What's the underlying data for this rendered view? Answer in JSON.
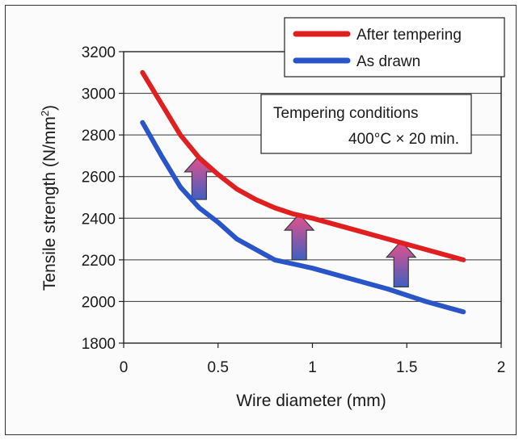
{
  "chart_data": {
    "type": "line",
    "title": "",
    "xlabel": "Wire diameter (mm)",
    "ylabel_main": "Tensile strength (N/mm",
    "ylabel_sup": "2",
    "ylabel_close": ")",
    "xlim": [
      0,
      2
    ],
    "ylim": [
      1800,
      3200
    ],
    "x_ticks": [
      0,
      0.5,
      1,
      1.5,
      2
    ],
    "x_tick_labels": [
      "0",
      "0.5",
      "1",
      "1.5",
      "2"
    ],
    "y_ticks": [
      1800,
      2000,
      2200,
      2400,
      2600,
      2800,
      3000,
      3200
    ],
    "y_tick_labels": [
      "1800",
      "2000",
      "2200",
      "2400",
      "2600",
      "2800",
      "3000",
      "3200"
    ],
    "grid": "horizontal",
    "legend_position": "top-right",
    "series": [
      {
        "name": "After tempering",
        "color": "#e02020",
        "x": [
          0.1,
          0.2,
          0.3,
          0.4,
          0.5,
          0.6,
          0.7,
          0.8,
          0.9,
          1.0,
          1.2,
          1.4,
          1.6,
          1.8
        ],
        "y": [
          3100,
          2950,
          2800,
          2690,
          2610,
          2540,
          2490,
          2450,
          2420,
          2400,
          2350,
          2300,
          2250,
          2200
        ]
      },
      {
        "name": "As drawn",
        "color": "#2a55c8",
        "x": [
          0.1,
          0.2,
          0.3,
          0.4,
          0.5,
          0.6,
          0.7,
          0.8,
          0.9,
          1.0,
          1.2,
          1.4,
          1.6,
          1.8
        ],
        "y": [
          2860,
          2700,
          2550,
          2450,
          2380,
          2300,
          2250,
          2200,
          2180,
          2160,
          2110,
          2060,
          2000,
          1950
        ]
      }
    ],
    "annotation": {
      "line1": "Tempering conditions",
      "line2": "400°C × 20 min."
    },
    "arrows": [
      {
        "x": 0.4,
        "from": 2490,
        "to": 2700
      },
      {
        "x": 0.93,
        "from": 2200,
        "to": 2420
      },
      {
        "x": 1.47,
        "from": 2070,
        "to": 2290
      }
    ],
    "colors": {
      "arrow_top": "#e8508a",
      "arrow_bottom": "#4060c0"
    }
  }
}
